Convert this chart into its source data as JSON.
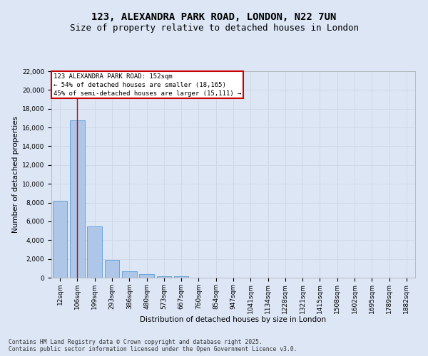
{
  "title1": "123, ALEXANDRA PARK ROAD, LONDON, N22 7UN",
  "title2": "Size of property relative to detached houses in London",
  "xlabel": "Distribution of detached houses by size in London",
  "ylabel": "Number of detached properties",
  "categories": [
    "12sqm",
    "106sqm",
    "199sqm",
    "293sqm",
    "386sqm",
    "480sqm",
    "573sqm",
    "667sqm",
    "760sqm",
    "854sqm",
    "947sqm",
    "1041sqm",
    "1134sqm",
    "1228sqm",
    "1321sqm",
    "1415sqm",
    "1508sqm",
    "1602sqm",
    "1695sqm",
    "1789sqm",
    "1882sqm"
  ],
  "values": [
    8200,
    16800,
    5450,
    1900,
    680,
    350,
    165,
    130,
    0,
    0,
    0,
    0,
    0,
    0,
    0,
    0,
    0,
    0,
    0,
    0,
    0
  ],
  "bar_color": "#aec6e8",
  "bar_edge_color": "#5b9bd5",
  "vline_x": 1,
  "vline_color": "#cc0000",
  "annotation_text": "123 ALEXANDRA PARK ROAD: 152sqm\n← 54% of detached houses are smaller (18,165)\n45% of semi-detached houses are larger (15,111) →",
  "annotation_box_color": "#ffffff",
  "annotation_box_edge_color": "#cc0000",
  "ylim": [
    0,
    22000
  ],
  "yticks": [
    0,
    2000,
    4000,
    6000,
    8000,
    10000,
    12000,
    14000,
    16000,
    18000,
    20000,
    22000
  ],
  "grid_color": "#d0d8e8",
  "background_color": "#dce6f5",
  "footer_text": "Contains HM Land Registry data © Crown copyright and database right 2025.\nContains public sector information licensed under the Open Government Licence v3.0.",
  "title_fontsize": 10,
  "subtitle_fontsize": 9,
  "axis_label_fontsize": 7.5,
  "tick_fontsize": 6.5,
  "annotation_fontsize": 6.5
}
